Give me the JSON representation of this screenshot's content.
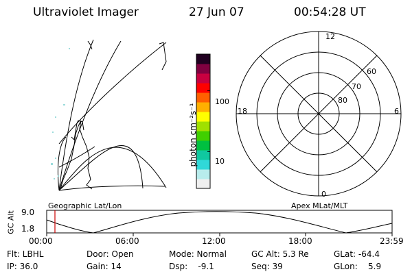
{
  "header": {
    "title": "Ultraviolet Imager",
    "date": "27 Jun 07",
    "time": "00:54:28 UT"
  },
  "colorbar": {
    "label": "photon cm⁻²s⁻¹",
    "ticks": [
      {
        "value": 100,
        "label": "100"
      },
      {
        "value": 10,
        "label": "10"
      }
    ],
    "scale": "log",
    "range": [
      2.5,
      400
    ],
    "colors": [
      "#f0f0f0",
      "#b8ecec",
      "#30d8d8",
      "#10c8a0",
      "#00c040",
      "#40d000",
      "#a0e000",
      "#ffff00",
      "#ffb000",
      "#ff6000",
      "#ff0000",
      "#c80040",
      "#800040",
      "#200020"
    ]
  },
  "left_map": {
    "label": "Geographic Lat/Lon"
  },
  "polar_plot": {
    "label": "Apex MLat/MLT",
    "mlt_labels": {
      "top": "12",
      "left": "18",
      "right": "6",
      "bottom": "0"
    },
    "lat_labels": [
      "60",
      "70",
      "80"
    ],
    "lat_rings": [
      50,
      60,
      70,
      80
    ]
  },
  "altitude_plot": {
    "ylabel": "GC Alt",
    "y_ticks": [
      "9.0",
      "1.8"
    ],
    "y_range": [
      1.8,
      9.0
    ],
    "x_ticks": [
      "00:00",
      "06:00",
      "12:00",
      "18:00",
      "23:59"
    ],
    "marker_time": "00:54",
    "marker_color": "#cc0000"
  },
  "info": {
    "filter": "Flt: LBHL",
    "ip": "IP: 36.0",
    "door": "Door: Open",
    "gain": "Gain: 14",
    "mode": "Mode: Normal",
    "dsp": "Dsp:    -9.1",
    "gc_alt": "GC Alt: 5.3 Re",
    "seq": "Seq: 39",
    "glat": "GLat: -64.4",
    "glon": "GLon:    5.9"
  }
}
